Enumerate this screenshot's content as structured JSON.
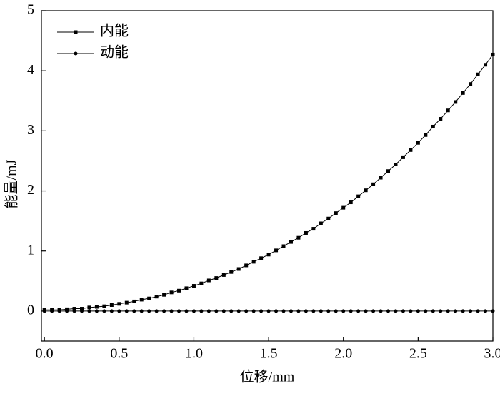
{
  "chart_data": {
    "type": "line",
    "xlabel": "位移/mm",
    "ylabel": "能量/mJ",
    "x": [
      0,
      0.05,
      0.1,
      0.15,
      0.2,
      0.25,
      0.3,
      0.35,
      0.4,
      0.45,
      0.5,
      0.55,
      0.6,
      0.65,
      0.7,
      0.75,
      0.8,
      0.85,
      0.9,
      0.95,
      1.0,
      1.05,
      1.1,
      1.15,
      1.2,
      1.25,
      1.3,
      1.35,
      1.4,
      1.45,
      1.5,
      1.55,
      1.6,
      1.65,
      1.7,
      1.75,
      1.8,
      1.85,
      1.9,
      1.95,
      2.0,
      2.05,
      2.1,
      2.15,
      2.2,
      2.25,
      2.3,
      2.35,
      2.4,
      2.45,
      2.5,
      2.55,
      2.6,
      2.65,
      2.7,
      2.75,
      2.8,
      2.85,
      2.9,
      2.95,
      3.0
    ],
    "series": [
      {
        "name": "内能",
        "color": "#000000",
        "marker": "square",
        "values": [
          0.02,
          0.02,
          0.02,
          0.03,
          0.04,
          0.04,
          0.06,
          0.07,
          0.08,
          0.1,
          0.12,
          0.14,
          0.16,
          0.19,
          0.21,
          0.24,
          0.27,
          0.31,
          0.34,
          0.38,
          0.42,
          0.46,
          0.51,
          0.55,
          0.6,
          0.65,
          0.7,
          0.76,
          0.82,
          0.88,
          0.94,
          1.01,
          1.08,
          1.15,
          1.22,
          1.3,
          1.37,
          1.46,
          1.54,
          1.63,
          1.72,
          1.81,
          1.91,
          2.01,
          2.11,
          2.22,
          2.33,
          2.44,
          2.56,
          2.68,
          2.8,
          2.93,
          3.07,
          3.2,
          3.34,
          3.48,
          3.63,
          3.78,
          3.94,
          4.1,
          4.27
        ]
      },
      {
        "name": "动能",
        "color": "#000000",
        "marker": "circle",
        "values": [
          0,
          0,
          0,
          0,
          0,
          0,
          0,
          0,
          0,
          0,
          0,
          0,
          0,
          0,
          0,
          0,
          0,
          0,
          0,
          0,
          0,
          0,
          0,
          0,
          0,
          0,
          0,
          0,
          0,
          0,
          0,
          0,
          0,
          0,
          0,
          0,
          0,
          0,
          0,
          0,
          0,
          0,
          0,
          0,
          0,
          0,
          0,
          0,
          0,
          0,
          0,
          0,
          0,
          0,
          0,
          0,
          0,
          0,
          0,
          0,
          0
        ]
      }
    ],
    "xlim": [
      -0.02,
      3.0
    ],
    "xticks": [
      {
        "value": 0,
        "label": "0.0"
      },
      0.5,
      {
        "value": 1,
        "label": "1.0"
      },
      1.5,
      {
        "value": 2,
        "label": "2.0"
      },
      2.5,
      {
        "value": 3,
        "label": "3.0"
      }
    ],
    "ylim": [
      -0.5,
      5
    ],
    "yticks": [
      0,
      1,
      2,
      3,
      4,
      5
    ],
    "legend": "upper-left",
    "grid": false
  }
}
